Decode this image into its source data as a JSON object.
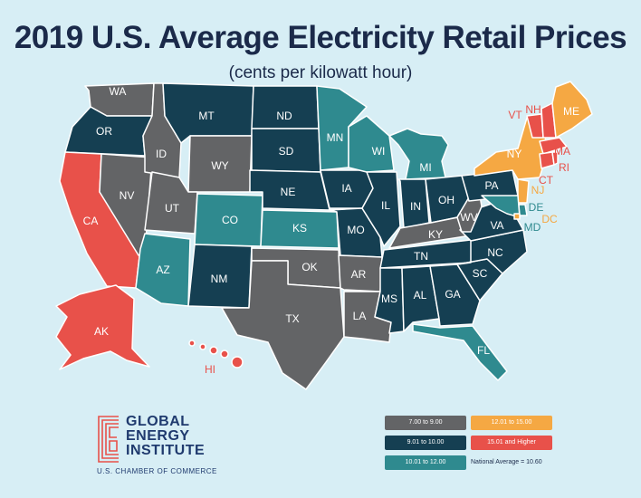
{
  "title": "2019 U.S. Average Electricity Retail Prices",
  "subtitle": "(cents per kilowatt hour)",
  "colors": {
    "gray": "#636466",
    "navy": "#153f52",
    "teal": "#2f8a8f",
    "orange": "#f5a843",
    "red": "#e8514a",
    "background": "#d7eef5",
    "title": "#1b2a4a"
  },
  "legend": {
    "items": [
      {
        "label": "7.00 to 9.00",
        "color": "#636466"
      },
      {
        "label": "12.01 to 15.00",
        "color": "#f5a843"
      },
      {
        "label": "9.01 to 10.00",
        "color": "#153f52"
      },
      {
        "label": "15.01 and Higher",
        "color": "#e8514a"
      },
      {
        "label": "10.01 to 12.00",
        "color": "#2f8a8f"
      }
    ],
    "national_average": "National Average = 10.60"
  },
  "logo": {
    "line1": "GLOBAL",
    "line2": "ENERGY",
    "line3": "INSTITUTE",
    "sub": "U.S. CHAMBER OF COMMERCE"
  },
  "states": {
    "WA": {
      "label": "WA",
      "bin": "7.00 to 9.00"
    },
    "OR": {
      "label": "OR",
      "bin": "9.01 to 10.00"
    },
    "CA": {
      "label": "CA",
      "bin": "15.01 and Higher"
    },
    "NV": {
      "label": "NV",
      "bin": "7.00 to 9.00"
    },
    "ID": {
      "label": "ID",
      "bin": "7.00 to 9.00"
    },
    "MT": {
      "label": "MT",
      "bin": "9.01 to 10.00"
    },
    "WY": {
      "label": "WY",
      "bin": "7.00 to 9.00"
    },
    "UT": {
      "label": "UT",
      "bin": "7.00 to 9.00"
    },
    "AZ": {
      "label": "AZ",
      "bin": "10.01 to 12.00"
    },
    "CO": {
      "label": "CO",
      "bin": "10.01 to 12.00"
    },
    "NM": {
      "label": "NM",
      "bin": "9.01 to 10.00"
    },
    "ND": {
      "label": "ND",
      "bin": "9.01 to 10.00"
    },
    "SD": {
      "label": "SD",
      "bin": "9.01 to 10.00"
    },
    "NE": {
      "label": "NE",
      "bin": "9.01 to 10.00"
    },
    "KS": {
      "label": "KS",
      "bin": "10.01 to 12.00"
    },
    "OK": {
      "label": "OK",
      "bin": "7.00 to 9.00"
    },
    "TX": {
      "label": "TX",
      "bin": "7.00 to 9.00"
    },
    "MN": {
      "label": "MN",
      "bin": "10.01 to 12.00"
    },
    "IA": {
      "label": "IA",
      "bin": "9.01 to 10.00"
    },
    "MO": {
      "label": "MO",
      "bin": "9.01 to 10.00"
    },
    "AR": {
      "label": "AR",
      "bin": "7.00 to 9.00"
    },
    "LA": {
      "label": "LA",
      "bin": "7.00 to 9.00"
    },
    "WI": {
      "label": "WI",
      "bin": "10.01 to 12.00"
    },
    "IL": {
      "label": "IL",
      "bin": "9.01 to 10.00"
    },
    "MI": {
      "label": "MI",
      "bin": "10.01 to 12.00"
    },
    "IN": {
      "label": "IN",
      "bin": "9.01 to 10.00"
    },
    "OH": {
      "label": "OH",
      "bin": "9.01 to 10.00"
    },
    "KY": {
      "label": "KY",
      "bin": "7.00 to 9.00"
    },
    "TN": {
      "label": "TN",
      "bin": "9.01 to 10.00"
    },
    "MS": {
      "label": "MS",
      "bin": "9.01 to 10.00"
    },
    "AL": {
      "label": "AL",
      "bin": "9.01 to 10.00"
    },
    "GA": {
      "label": "GA",
      "bin": "9.01 to 10.00"
    },
    "FL": {
      "label": "FL",
      "bin": "10.01 to 12.00"
    },
    "SC": {
      "label": "SC",
      "bin": "9.01 to 10.00"
    },
    "NC": {
      "label": "NC",
      "bin": "9.01 to 10.00"
    },
    "VA": {
      "label": "VA",
      "bin": "9.01 to 10.00"
    },
    "WV": {
      "label": "WV",
      "bin": "7.00 to 9.00"
    },
    "PA": {
      "label": "PA",
      "bin": "9.01 to 10.00"
    },
    "NY": {
      "label": "NY",
      "bin": "12.01 to 15.00"
    },
    "VT": {
      "label": "VT",
      "bin": "15.01 and Higher"
    },
    "NH": {
      "label": "NH",
      "bin": "15.01 and Higher"
    },
    "ME": {
      "label": "ME",
      "bin": "12.01 to 15.00"
    },
    "MA": {
      "label": "MA",
      "bin": "15.01 and Higher"
    },
    "RI": {
      "label": "RI",
      "bin": "15.01 and Higher"
    },
    "CT": {
      "label": "CT",
      "bin": "15.01 and Higher"
    },
    "NJ": {
      "label": "NJ",
      "bin": "12.01 to 15.00"
    },
    "DE": {
      "label": "DE",
      "bin": "10.01 to 12.00"
    },
    "MD": {
      "label": "MD",
      "bin": "10.01 to 12.00"
    },
    "DC": {
      "label": "DC",
      "bin": "12.01 to 15.00"
    },
    "AK": {
      "label": "AK",
      "bin": "15.01 and Higher"
    },
    "HI": {
      "label": "HI",
      "bin": "15.01 and Higher"
    }
  }
}
